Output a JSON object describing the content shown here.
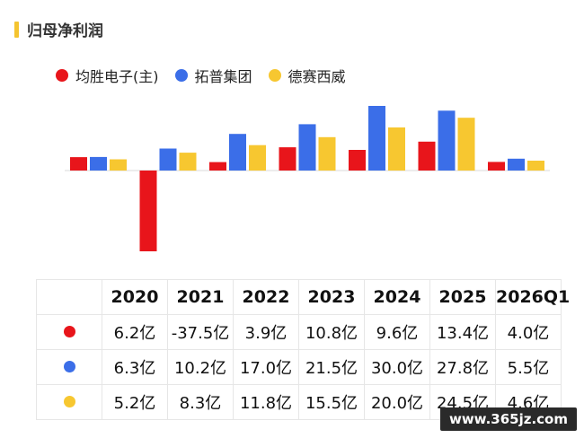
{
  "title": "归母净利润",
  "colors": {
    "title_accent": "#f4c430",
    "series": [
      "#e8151b",
      "#3b6ee8",
      "#f7c730"
    ]
  },
  "chart_data": {
    "type": "bar",
    "title": "",
    "categories": [
      "2020",
      "2021",
      "2022",
      "2023",
      "2024",
      "2025",
      "2026Q1"
    ],
    "series": [
      {
        "name": "均胜电子(主)",
        "color": "#e8151b",
        "values": [
          6.2,
          -37.5,
          3.9,
          10.8,
          9.6,
          13.4,
          4.0
        ]
      },
      {
        "name": "拓普集团",
        "color": "#3b6ee8",
        "values": [
          6.3,
          10.2,
          17.0,
          21.5,
          30.0,
          27.8,
          5.5
        ]
      },
      {
        "name": "德赛西威",
        "color": "#f7c730",
        "values": [
          5.2,
          8.3,
          11.8,
          15.5,
          20.0,
          24.5,
          4.6
        ]
      }
    ],
    "unit": "亿",
    "ylim": [
      -37.5,
      30.0
    ],
    "grid": false,
    "legend_position": "top-left"
  },
  "table": {
    "headers": [
      "2020",
      "2021",
      "2022",
      "2023",
      "2024",
      "2025",
      "2026Q1"
    ],
    "rows": [
      {
        "color": "#e8151b",
        "cells": [
          "6.2亿",
          "-37.5亿",
          "3.9亿",
          "10.8亿",
          "9.6亿",
          "13.4亿",
          "4.0亿"
        ]
      },
      {
        "color": "#3b6ee8",
        "cells": [
          "6.3亿",
          "10.2亿",
          "17.0亿",
          "21.5亿",
          "30.0亿",
          "27.8亿",
          "5.5亿"
        ]
      },
      {
        "color": "#f7c730",
        "cells": [
          "5.2亿",
          "8.3亿",
          "11.8亿",
          "15.5亿",
          "20.0亿",
          "24.5亿",
          "4.6亿"
        ]
      }
    ]
  },
  "watermark": "www.365jz.com"
}
